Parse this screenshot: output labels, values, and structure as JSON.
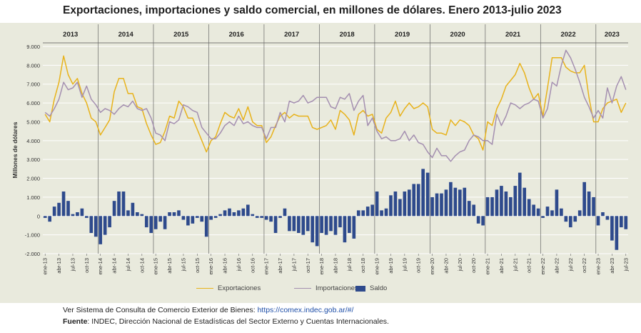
{
  "title": "Exportaciones, importaciones y saldo comercial, en millones de dólares. Enero 2013-julio 2023",
  "footer": {
    "source_text": "Ver Sistema de Consulta de Comercio Exterior de Bienes: ",
    "source_link": "https://comex.indec.gob.ar/#/",
    "fuente_label": "Fuente",
    "fuente_text": ": INDEC, Dirección Nacional de Estadísticas del Sector Externo y Cuentas Internacionales."
  },
  "colors": {
    "export": "#e8b21a",
    "import": "#a48fb0",
    "saldo": "#2e4a8c",
    "panel": "#e9eadd",
    "grid": "#ffffff"
  },
  "chart_data": {
    "type": "line+bar",
    "ylabel": "Millones de dólares",
    "ylim": [
      -2000,
      9000
    ],
    "yticks": [
      -2000,
      -1000,
      0,
      1000,
      2000,
      3000,
      4000,
      5000,
      6000,
      7000,
      8000,
      9000
    ],
    "ytick_labels": [
      "-2.000",
      "-1.000",
      "0",
      "1.000",
      "2.000",
      "3.000",
      "4.000",
      "5.000",
      "6.000",
      "7.000",
      "8.000",
      "9.000"
    ],
    "years": [
      "2013",
      "2014",
      "2015",
      "2016",
      "2017",
      "2018",
      "2019",
      "2020",
      "2021",
      "2022",
      "2023"
    ],
    "start": "ene-13",
    "xtick_labels": [
      "ene-13",
      "abr-13",
      "jul-13",
      "oct-13",
      "ene-14",
      "abr-14",
      "jul-14",
      "oct-14",
      "ene-15",
      "abr-15",
      "jul-15",
      "oct-15",
      "ene-16",
      "abr-16",
      "jul-16",
      "oct-16",
      "ene-17",
      "abr-17",
      "jul-17",
      "oct-17",
      "ene-18",
      "abr-18",
      "jul-18",
      "oct-18",
      "ene-19",
      "abr-19",
      "jul-19",
      "oct-19",
      "ene-20",
      "abr-20",
      "jul-20",
      "oct-20",
      "ene-21",
      "abr-21",
      "jul-21",
      "oct-21",
      "ene-22",
      "abr-22",
      "jul-22",
      "oct-22",
      "ene-23",
      "abr-23",
      "jul-23"
    ],
    "legend": [
      "Exportaciones",
      "Importaciones",
      "Saldo"
    ],
    "series": [
      {
        "name": "Exportaciones",
        "type": "line",
        "values": [
          5400,
          5000,
          6200,
          7100,
          8500,
          7500,
          7000,
          7300,
          6500,
          6000,
          5200,
          5000,
          4300,
          4700,
          5100,
          6600,
          7300,
          7300,
          6500,
          6500,
          5800,
          5700,
          4900,
          4300,
          3800,
          3900,
          4500,
          5300,
          5200,
          6100,
          5800,
          5200,
          5200,
          4600,
          4000,
          3400,
          4000,
          4200,
          4900,
          5500,
          5300,
          5200,
          5700,
          5100,
          5800,
          5000,
          4800,
          4800,
          3900,
          4200,
          4800,
          5300,
          5500,
          5200,
          5400,
          5300,
          5300,
          5300,
          4700,
          4600,
          4700,
          4800,
          5100,
          4600,
          5600,
          5400,
          5100,
          4300,
          5400,
          5600,
          5300,
          5400,
          4600,
          4400,
          5200,
          5500,
          6100,
          5300,
          5700,
          6000,
          5700,
          5800,
          6000,
          5800,
          4600,
          4400,
          4400,
          4300,
          5100,
          4800,
          5100,
          5000,
          4800,
          4300,
          4100,
          3500,
          5000,
          4800,
          5700,
          6200,
          6900,
          7200,
          7500,
          8100,
          7600,
          6800,
          6200,
          6500,
          5300,
          6800,
          8400,
          8400,
          8400,
          7900,
          7700,
          7600,
          7600,
          8000,
          6300,
          5000,
          5000,
          5700,
          6000,
          6100,
          6200,
          5500,
          6000
        ]
      },
      {
        "name": "Importaciones",
        "type": "line",
        "values": [
          5500,
          5300,
          5700,
          6200,
          7100,
          6700,
          6800,
          7100,
          6300,
          6900,
          6200,
          5900,
          5500,
          5700,
          5600,
          5400,
          5700,
          5900,
          5800,
          6100,
          5700,
          5600,
          5700,
          5200,
          4400,
          4300,
          4000,
          5000,
          4900,
          5100,
          5900,
          5800,
          5600,
          5500,
          4700,
          4400,
          4100,
          4100,
          4400,
          4800,
          5000,
          4800,
          5300,
          4900,
          5000,
          4800,
          4700,
          4700,
          4100,
          4700,
          4700,
          5500,
          5000,
          6100,
          6000,
          6100,
          6400,
          6000,
          6100,
          6300,
          6300,
          6300,
          5800,
          5700,
          6300,
          6200,
          6500,
          5600,
          6100,
          6400,
          4800,
          5200,
          4500,
          4100,
          4200,
          4000,
          4000,
          4100,
          4500,
          4000,
          4300,
          3900,
          3800,
          3400,
          3100,
          3600,
          3200,
          3200,
          2900,
          3200,
          3400,
          3500,
          4000,
          4300,
          4200,
          4000,
          4000,
          3800,
          5400,
          4800,
          5300,
          6000,
          5900,
          5700,
          5900,
          6000,
          6200,
          6100,
          5200,
          5700,
          7100,
          6900,
          8000,
          8800,
          8400,
          7800,
          7100,
          6300,
          5800,
          5200,
          5600,
          5200,
          6800,
          6000,
          6900,
          7400,
          6700
        ]
      },
      {
        "name": "Saldo",
        "type": "bar",
        "values": [
          -100,
          -300,
          500,
          700,
          1300,
          800,
          100,
          200,
          400,
          -100,
          -900,
          -1100,
          -1500,
          -1000,
          -600,
          800,
          1300,
          1300,
          300,
          700,
          200,
          100,
          -600,
          -900,
          -700,
          -300,
          -700,
          200,
          200,
          300,
          -200,
          -500,
          -400,
          -100,
          -300,
          -1100,
          -200,
          -100,
          100,
          300,
          400,
          200,
          300,
          400,
          600,
          100,
          -100,
          -100,
          -200,
          -300,
          -900,
          -100,
          400,
          -800,
          -800,
          -900,
          -1000,
          -800,
          -1400,
          -1600,
          -900,
          -1000,
          -800,
          -1000,
          -600,
          -1400,
          -900,
          -1200,
          300,
          300,
          500,
          600,
          1300,
          300,
          400,
          1100,
          1300,
          900,
          1300,
          1400,
          1700,
          1700,
          2500,
          2300,
          1000,
          1200,
          1200,
          1400,
          1800,
          1500,
          1400,
          1500,
          800,
          600,
          -400,
          -500,
          1000,
          1000,
          1400,
          1600,
          1300,
          1000,
          1600,
          2300,
          1500,
          900,
          600,
          400,
          -100,
          500,
          300,
          1400,
          400,
          -300,
          -600,
          -300,
          300,
          1800,
          1300,
          1000,
          -500,
          200,
          -200,
          -1300,
          -1800,
          -600,
          -700
        ]
      }
    ]
  }
}
